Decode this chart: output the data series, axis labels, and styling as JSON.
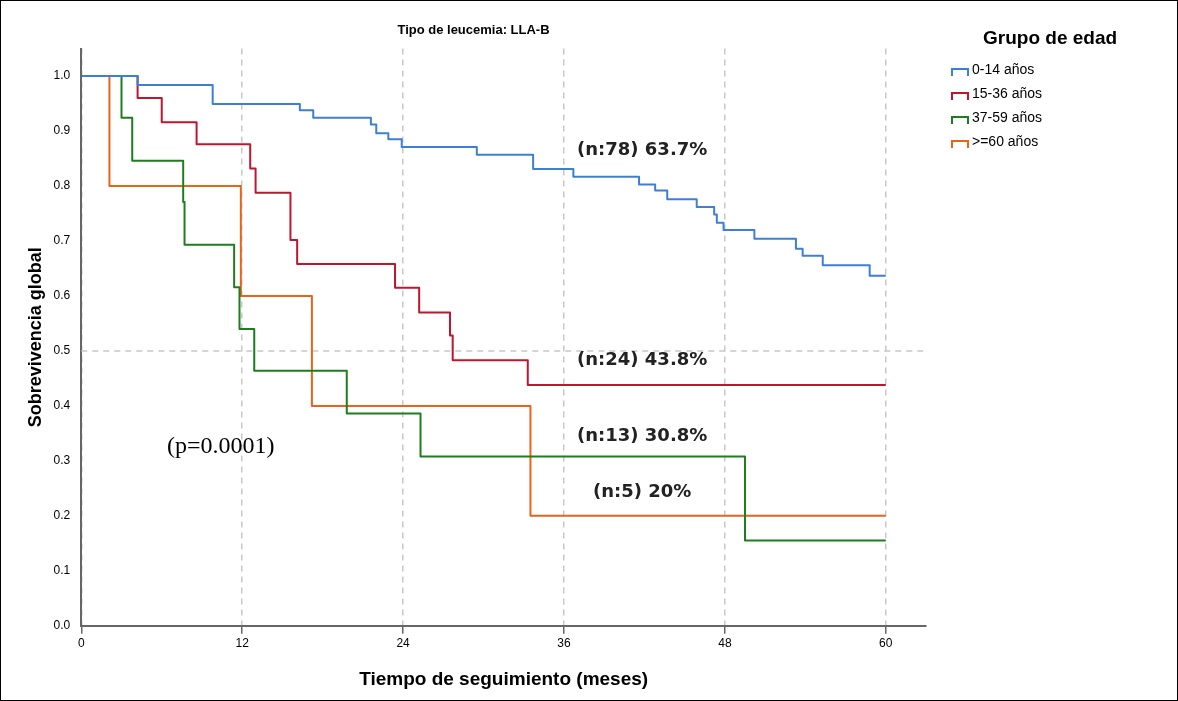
{
  "chart_data": {
    "type": "step",
    "title": "Tipo de leucemia: LLA-B",
    "xlabel": "Tiempo de seguimiento (meses)",
    "ylabel": "Sobrevivencia global",
    "legend_title": "Grupo de edad",
    "legend": "top right",
    "grid": "x",
    "marker": "none",
    "line_style": "solid",
    "xlim": [
      0,
      63
    ],
    "xticks": [
      0,
      12,
      24,
      36,
      48,
      60
    ],
    "ylim": [
      0,
      1.05
    ],
    "yticks": [
      {
        "value": 0,
        "label": "0.0"
      },
      0.1,
      0.2,
      0.3,
      0.4,
      0.5,
      0.6,
      0.7,
      0.8,
      0.9,
      {
        "value": 1,
        "label": "1.0"
      }
    ],
    "series": [
      {
        "name": "0-14 años",
        "color": "#3d7fd6",
        "x": [
          0,
          4.2,
          9.8,
          16.3,
          17.3,
          21.6,
          22.0,
          22.9,
          23.9,
          29.5,
          33.7,
          36.7,
          41.6,
          42.8,
          43.7,
          45.9,
          47.2,
          47.4,
          47.9,
          50.2,
          53.3,
          53.8,
          55.3,
          58.8,
          60
        ],
        "values": [
          1.0,
          0.984,
          0.949,
          0.938,
          0.924,
          0.912,
          0.896,
          0.885,
          0.871,
          0.857,
          0.831,
          0.817,
          0.803,
          0.792,
          0.776,
          0.762,
          0.748,
          0.733,
          0.72,
          0.704,
          0.686,
          0.673,
          0.656,
          0.637,
          0.637
        ]
      },
      {
        "name": "15-36 años",
        "color": "#c0152f",
        "x": [
          0,
          4.2,
          6.0,
          8.6,
          12.6,
          13.0,
          15.6,
          16.1,
          23.4,
          25.2,
          27.5,
          27.7,
          33.3,
          60
        ],
        "values": [
          1.0,
          0.96,
          0.916,
          0.876,
          0.832,
          0.788,
          0.702,
          0.658,
          0.615,
          0.57,
          0.528,
          0.483,
          0.438,
          0.438
        ]
      },
      {
        "name": "37-59 años",
        "color": "#1e7d1e",
        "x": [
          0,
          3.0,
          3.8,
          7.6,
          7.7,
          11.4,
          11.8,
          12.9,
          19.8,
          25.3,
          49.5,
          60
        ],
        "values": [
          1.0,
          0.924,
          0.846,
          0.771,
          0.693,
          0.616,
          0.54,
          0.464,
          0.386,
          0.308,
          0.155,
          0.155
        ]
      },
      {
        "name": ">=60 años",
        "color": "#e8641b",
        "x": [
          0,
          2.1,
          11.9,
          17.2,
          33.5,
          60
        ],
        "values": [
          1.0,
          0.8,
          0.6,
          0.4,
          0.2,
          0.2
        ]
      }
    ],
    "ref_lines": [
      {
        "axis": "y",
        "value": 0.5,
        "color": "#c8c8c8",
        "line_style": "dashed"
      }
    ],
    "annotations": [
      "(n:78) 63.7%",
      "(n:24) 43.8%",
      "(n:13) 30.8%",
      "(n:5) 20%",
      "(p=0.0001)"
    ]
  }
}
